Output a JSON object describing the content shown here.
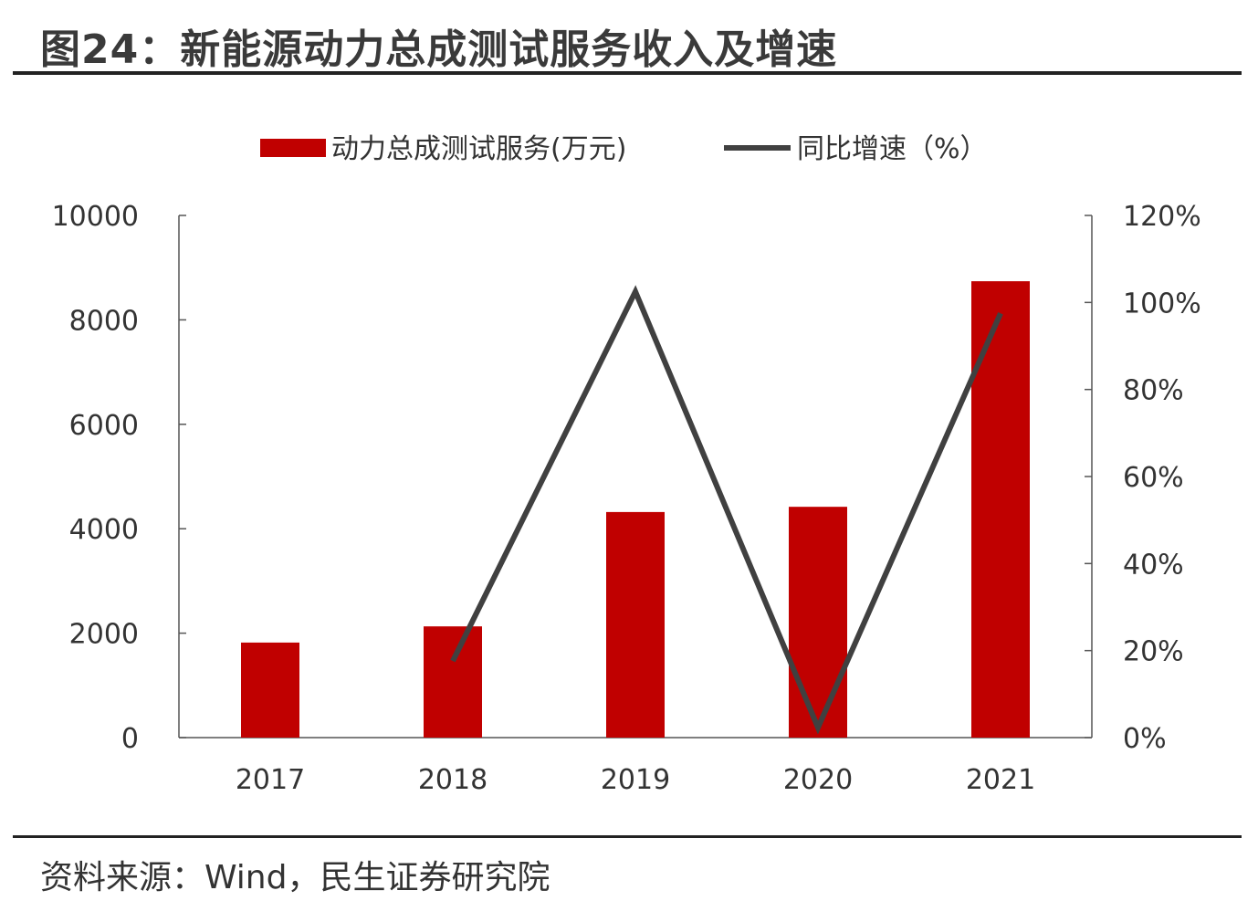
{
  "title": "图24：新能源动力总成测试服务收入及增速",
  "source": "资料来源：Wind，民生证券研究院",
  "chart_data": {
    "type": "bar+line",
    "categories": [
      "2017",
      "2018",
      "2019",
      "2020",
      "2021"
    ],
    "series": [
      {
        "name": "动力总成测试服务(万元)",
        "type": "bar",
        "axis": "left",
        "color": "#C00000",
        "values": [
          1820,
          2130,
          4320,
          4420,
          8740
        ]
      },
      {
        "name": "同比增速（%）",
        "type": "line",
        "axis": "right",
        "color": "#404040",
        "values": [
          null,
          17.6,
          102.5,
          2.3,
          97.5
        ]
      }
    ],
    "left_axis": {
      "ylim": [
        0,
        10000
      ],
      "ticks": [
        "0",
        "2000",
        "4000",
        "6000",
        "8000",
        "10000"
      ]
    },
    "right_axis": {
      "ylim": [
        0,
        120
      ],
      "ticks": [
        "0%",
        "20%",
        "40%",
        "60%",
        "80%",
        "100%",
        "120%"
      ]
    },
    "legend_position": "top",
    "grid": false
  }
}
